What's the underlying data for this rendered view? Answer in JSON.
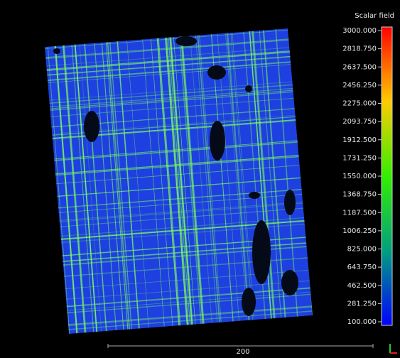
{
  "color_scale": {
    "title": "Scalar field",
    "ticks": [
      {
        "value": 3000,
        "label": "3000.000"
      },
      {
        "value": 2818.75,
        "label": "2818.750"
      },
      {
        "value": 2637.5,
        "label": "2637.500"
      },
      {
        "value": 2456.25,
        "label": "2456.250"
      },
      {
        "value": 2275,
        "label": "2275.000"
      },
      {
        "value": 2093.75,
        "label": "2093.750"
      },
      {
        "value": 1912.5,
        "label": "1912.500"
      },
      {
        "value": 1731.25,
        "label": "1731.250"
      },
      {
        "value": 1550,
        "label": "1550.000"
      },
      {
        "value": 1368.75,
        "label": "1368.750"
      },
      {
        "value": 1187.5,
        "label": "1187.500"
      },
      {
        "value": 1006.25,
        "label": "1006.250"
      },
      {
        "value": 825,
        "label": "825.000"
      },
      {
        "value": 643.75,
        "label": "643.750"
      },
      {
        "value": 462.5,
        "label": "462.500"
      },
      {
        "value": 281.25,
        "label": "281.250"
      },
      {
        "value": 100,
        "label": "100.000"
      }
    ]
  },
  "scale_bar": {
    "label": "200"
  }
}
